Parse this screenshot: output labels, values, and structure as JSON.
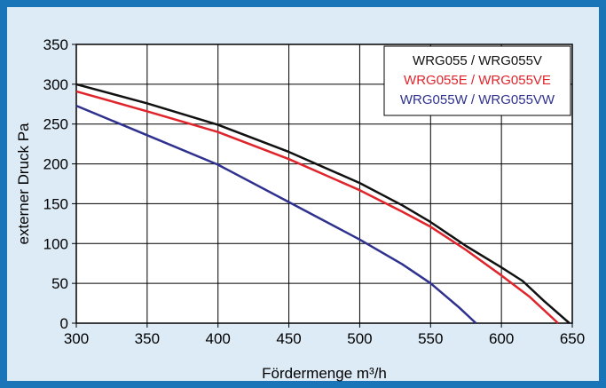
{
  "chart_data": {
    "type": "line",
    "xlabel": "Fördermenge m³/h",
    "ylabel": "externer Druck Pa",
    "xlim": [
      300,
      650
    ],
    "ylim": [
      0,
      350
    ],
    "x_ticks": [
      "300",
      "350",
      "400",
      "450",
      "500",
      "550",
      "600",
      "650"
    ],
    "y_ticks": [
      "0",
      "50",
      "100",
      "150",
      "200",
      "250",
      "300",
      "350"
    ],
    "grid": true,
    "legend_position": "top-right",
    "series": [
      {
        "name": "WRG055  / WRG055V",
        "color": "#111111",
        "points": [
          [
            300,
            300
          ],
          [
            350,
            276
          ],
          [
            400,
            249
          ],
          [
            450,
            215
          ],
          [
            500,
            176
          ],
          [
            530,
            148
          ],
          [
            550,
            127
          ],
          [
            575,
            97
          ],
          [
            600,
            70
          ],
          [
            615,
            53
          ],
          [
            630,
            28
          ],
          [
            648,
            0
          ]
        ]
      },
      {
        "name": "WRG055E / WRG055VE",
        "color": "#e0242b",
        "points": [
          [
            300,
            291
          ],
          [
            350,
            266
          ],
          [
            400,
            240
          ],
          [
            450,
            206
          ],
          [
            500,
            167
          ],
          [
            530,
            140
          ],
          [
            550,
            121
          ],
          [
            575,
            92
          ],
          [
            600,
            60
          ],
          [
            620,
            33
          ],
          [
            640,
            0
          ]
        ]
      },
      {
        "name": "WRG055W / WRG055VW",
        "color": "#2f318f",
        "points": [
          [
            300,
            273
          ],
          [
            350,
            236
          ],
          [
            400,
            199
          ],
          [
            450,
            152
          ],
          [
            500,
            105
          ],
          [
            530,
            74
          ],
          [
            550,
            50
          ],
          [
            570,
            20
          ],
          [
            582,
            0
          ]
        ]
      }
    ]
  }
}
